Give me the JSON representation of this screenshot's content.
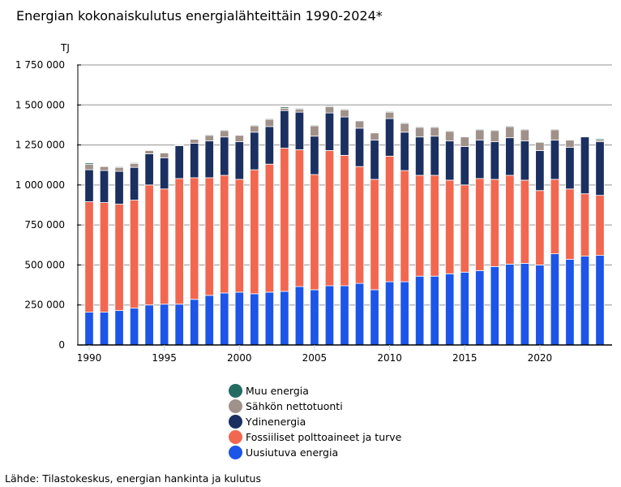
{
  "chart_data": {
    "type": "bar",
    "stacked": true,
    "title": "Energian kokonaiskulutus energialähteittäin 1990-2024*",
    "ylabel": "TJ",
    "xlabel": "",
    "ylim": [
      0,
      1750000
    ],
    "yticks": [
      0,
      250000,
      500000,
      750000,
      1000000,
      1250000,
      1500000,
      1750000
    ],
    "ytick_labels": [
      "0",
      "250 000",
      "500 000",
      "750 000",
      "1 000 000",
      "1 250 000",
      "1 500 000",
      "1 750 000"
    ],
    "xtick_labels": [
      "1990",
      "1995",
      "2000",
      "2005",
      "2010",
      "2015",
      "2020"
    ],
    "grid": true,
    "legend_position": "bottom-center",
    "categories": [
      "1990",
      "1991",
      "1992",
      "1993",
      "1994",
      "1995",
      "1996",
      "1997",
      "1998",
      "1999",
      "2000",
      "2001",
      "2002",
      "2003",
      "2004",
      "2005",
      "2006",
      "2007",
      "2008",
      "2009",
      "2010",
      "2011",
      "2012",
      "2013",
      "2014",
      "2015",
      "2016",
      "2017",
      "2018",
      "2019",
      "2020",
      "2021",
      "2022",
      "2023",
      "2024"
    ],
    "series": [
      {
        "name": "Uusiutuva energia",
        "color": "#1c55e8",
        "values": [
          205000,
          205000,
          215000,
          230000,
          250000,
          255000,
          255000,
          285000,
          310000,
          325000,
          330000,
          320000,
          330000,
          335000,
          365000,
          345000,
          370000,
          370000,
          385000,
          345000,
          395000,
          395000,
          430000,
          430000,
          445000,
          455000,
          465000,
          490000,
          505000,
          510000,
          500000,
          570000,
          535000,
          555000,
          560000
        ]
      },
      {
        "name": "Fossiiliset polttoaineet ja turve",
        "color": "#f26750",
        "values": [
          690000,
          685000,
          665000,
          675000,
          750000,
          720000,
          785000,
          760000,
          735000,
          735000,
          705000,
          775000,
          800000,
          895000,
          855000,
          720000,
          845000,
          815000,
          730000,
          690000,
          785000,
          695000,
          630000,
          630000,
          585000,
          545000,
          575000,
          545000,
          555000,
          520000,
          465000,
          465000,
          440000,
          390000,
          375000
        ]
      },
      {
        "name": "Ydinenergia",
        "color": "#1b2f60",
        "values": [
          200000,
          200000,
          205000,
          205000,
          195000,
          195000,
          205000,
          215000,
          230000,
          240000,
          235000,
          235000,
          235000,
          235000,
          235000,
          240000,
          235000,
          240000,
          240000,
          245000,
          235000,
          240000,
          240000,
          245000,
          245000,
          240000,
          240000,
          235000,
          235000,
          245000,
          250000,
          245000,
          260000,
          355000,
          335000
        ]
      },
      {
        "name": "Sähkön nettotuonti",
        "color": "#a0918a",
        "values": [
          35000,
          25000,
          25000,
          25000,
          20000,
          30000,
          5000,
          25000,
          35000,
          40000,
          40000,
          40000,
          45000,
          15000,
          20000,
          65000,
          40000,
          45000,
          45000,
          45000,
          40000,
          55000,
          60000,
          55000,
          60000,
          60000,
          65000,
          70000,
          70000,
          70000,
          50000,
          65000,
          45000,
          0,
          10000
        ]
      },
      {
        "name": "Muu energia",
        "color": "#246b62",
        "values": [
          8000,
          0,
          5000,
          5000,
          0,
          0,
          0,
          0,
          5000,
          5000,
          0,
          5000,
          5000,
          8000,
          5000,
          5000,
          5000,
          5000,
          0,
          0,
          5000,
          5000,
          5000,
          5000,
          5000,
          0,
          5000,
          5000,
          5000,
          5000,
          5000,
          5000,
          0,
          0,
          8000
        ]
      }
    ],
    "legend_order": [
      "Muu energia",
      "Sähkön nettotuonti",
      "Ydinenergia",
      "Fossiiliset polttoaineet ja turve",
      "Uusiutuva energia"
    ]
  },
  "header": {
    "title": "Energian kokonaiskulutus energialähteittäin 1990-2024*",
    "unit": "TJ"
  },
  "legend": [
    {
      "label": "Muu energia",
      "color": "#246b62"
    },
    {
      "label": "Sähkön nettotuonti",
      "color": "#a0918a"
    },
    {
      "label": "Ydinenergia",
      "color": "#1b2f60"
    },
    {
      "label": "Fossiiliset polttoaineet ja turve",
      "color": "#f26750"
    },
    {
      "label": "Uusiutuva energia",
      "color": "#1c55e8"
    }
  ],
  "footer": {
    "source": "Lähde: Tilastokeskus, energian hankinta ja kulutus"
  }
}
